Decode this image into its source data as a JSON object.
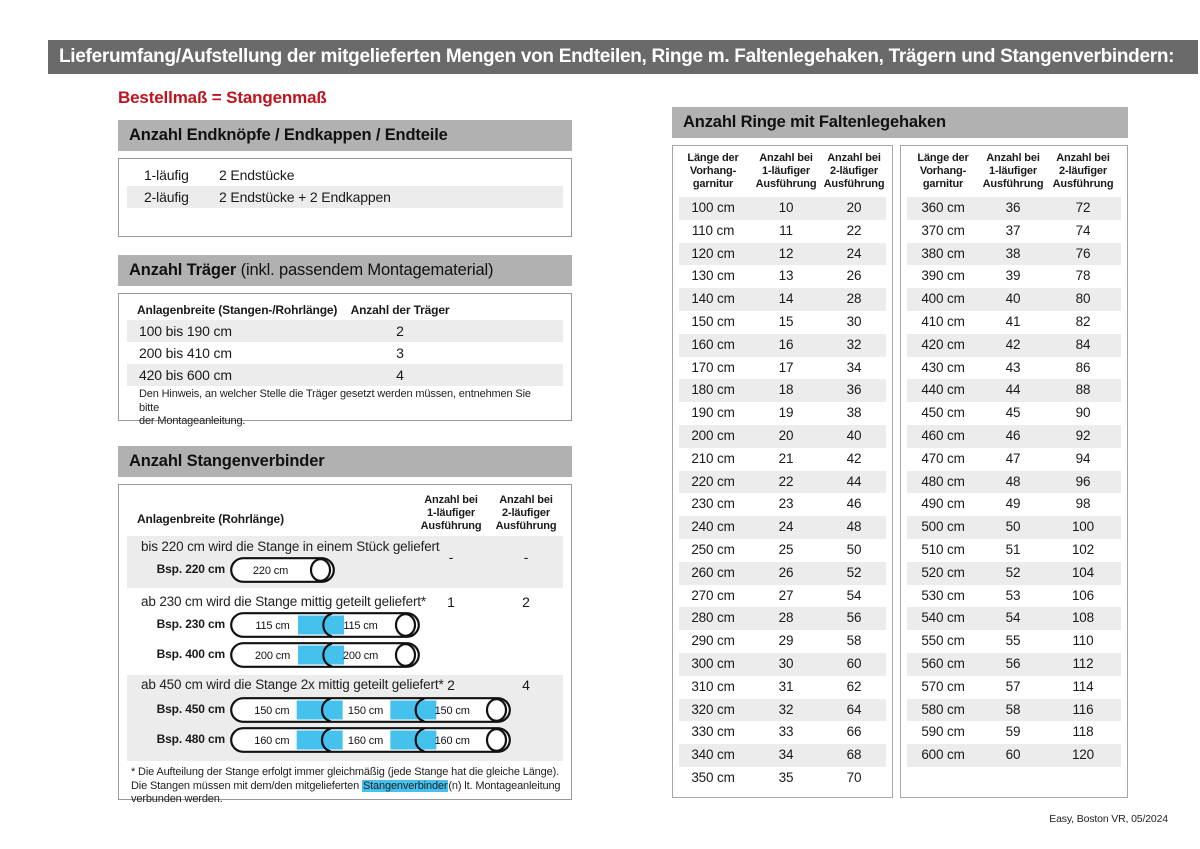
{
  "title_bar": "Lieferumfang/Aufstellung der mitgelieferten Mengen von Endteilen, Ringe m. Faltenlegehaken, Trägern und Stangenverbindern:",
  "red_note": "Bestellmaß = Stangenmaß",
  "colors": {
    "accent_red": "#bf131e",
    "connector_cyan": "#45c1ee",
    "bar_dark": "#6a6a6a",
    "bar_gray": "#b1b1b1",
    "stripe": "#ececec"
  },
  "end_pieces": {
    "header": "Anzahl Endknöpfe / Endkappen / Endteile",
    "rows": [
      {
        "label": "1-läufig",
        "value": "2 Endstücke"
      },
      {
        "label": "2-läufig",
        "value": "2 Endstücke + 2 Endkappen"
      }
    ]
  },
  "traeger": {
    "header_bold": "Anzahl Träger",
    "header_rest": " (inkl. passendem Montagematerial)",
    "col1": "Anlagenbreite (Stangen-/Rohrlänge)",
    "col2": "Anzahl der Träger",
    "rows": [
      {
        "range": "100 bis 190 cm",
        "count": "2"
      },
      {
        "range": "200 bis 410 cm",
        "count": "3"
      },
      {
        "range": "420 bis 600 cm",
        "count": "4"
      }
    ],
    "note": "Den Hinweis, an welcher Stelle die Träger gesetzt werden müssen, entnehmen Sie bitte\nder Montageanleitung."
  },
  "verbinder": {
    "header": "Anzahl Stangenverbinder",
    "col1": "Anlagenbreite (Rohrlänge)",
    "col2": "Anzahl bei\n1-läufiger\nAusführung",
    "col3": "Anzahl bei\n2-läufiger\nAusführung",
    "blocks": [
      {
        "text": "bis 220 cm wird die Stange in einem Stück geliefert",
        "v1": "-",
        "v2": "-",
        "rods": [
          {
            "label": "Bsp. 220 cm",
            "segments": [
              "220 cm"
            ]
          }
        ]
      },
      {
        "text": "ab 230 cm wird die Stange mittig geteilt geliefert*",
        "v1": "1",
        "v2": "2",
        "rods": [
          {
            "label": "Bsp. 230 cm",
            "segments": [
              "115 cm",
              "115 cm"
            ]
          },
          {
            "label": "Bsp. 400 cm",
            "segments": [
              "200 cm",
              "200 cm"
            ]
          }
        ]
      },
      {
        "text": "ab 450 cm wird die Stange 2x mittig geteilt geliefert*",
        "v1": "2",
        "v2": "4",
        "rods": [
          {
            "label": "Bsp. 450 cm",
            "segments": [
              "150 cm",
              "150 cm",
              "150 cm"
            ]
          },
          {
            "label": "Bsp. 480 cm",
            "segments": [
              "160 cm",
              "160 cm",
              "160 cm"
            ]
          }
        ]
      }
    ],
    "footnote_pre": "* Die Aufteilung der Stange erfolgt immer gleichmäßig (jede Stange hat die gleiche Länge). Die Stangen müssen mit dem/den mitgelieferten ",
    "footnote_highlight": "Stangenverbinder",
    "footnote_post": "(n) lt. Montageanleitung verbunden werden."
  },
  "rings": {
    "header": "Anzahl Ringe mit Faltenlegehaken",
    "col1": "Länge der\nVorhang-\ngarnitur",
    "col2": "Anzahl bei\n1-läufiger\nAusführung",
    "col3": "Anzahl bei\n2-läufiger\nAusführung",
    "table1": [
      [
        "100 cm",
        "10",
        "20"
      ],
      [
        "110 cm",
        "11",
        "22"
      ],
      [
        "120 cm",
        "12",
        "24"
      ],
      [
        "130 cm",
        "13",
        "26"
      ],
      [
        "140 cm",
        "14",
        "28"
      ],
      [
        "150 cm",
        "15",
        "30"
      ],
      [
        "160 cm",
        "16",
        "32"
      ],
      [
        "170 cm",
        "17",
        "34"
      ],
      [
        "180 cm",
        "18",
        "36"
      ],
      [
        "190 cm",
        "19",
        "38"
      ],
      [
        "200 cm",
        "20",
        "40"
      ],
      [
        "210 cm",
        "21",
        "42"
      ],
      [
        "220 cm",
        "22",
        "44"
      ],
      [
        "230 cm",
        "23",
        "46"
      ],
      [
        "240 cm",
        "24",
        "48"
      ],
      [
        "250 cm",
        "25",
        "50"
      ],
      [
        "260 cm",
        "26",
        "52"
      ],
      [
        "270 cm",
        "27",
        "54"
      ],
      [
        "280 cm",
        "28",
        "56"
      ],
      [
        "290 cm",
        "29",
        "58"
      ],
      [
        "300 cm",
        "30",
        "60"
      ],
      [
        "310 cm",
        "31",
        "62"
      ],
      [
        "320 cm",
        "32",
        "64"
      ],
      [
        "330 cm",
        "33",
        "66"
      ],
      [
        "340 cm",
        "34",
        "68"
      ],
      [
        "350 cm",
        "35",
        "70"
      ]
    ],
    "table2": [
      [
        "360 cm",
        "36",
        "72"
      ],
      [
        "370 cm",
        "37",
        "74"
      ],
      [
        "380 cm",
        "38",
        "76"
      ],
      [
        "390 cm",
        "39",
        "78"
      ],
      [
        "400 cm",
        "40",
        "80"
      ],
      [
        "410 cm",
        "41",
        "82"
      ],
      [
        "420 cm",
        "42",
        "84"
      ],
      [
        "430 cm",
        "43",
        "86"
      ],
      [
        "440 cm",
        "44",
        "88"
      ],
      [
        "450 cm",
        "45",
        "90"
      ],
      [
        "460 cm",
        "46",
        "92"
      ],
      [
        "470 cm",
        "47",
        "94"
      ],
      [
        "480 cm",
        "48",
        "96"
      ],
      [
        "490 cm",
        "49",
        "98"
      ],
      [
        "500 cm",
        "50",
        "100"
      ],
      [
        "510 cm",
        "51",
        "102"
      ],
      [
        "520 cm",
        "52",
        "104"
      ],
      [
        "530 cm",
        "53",
        "106"
      ],
      [
        "540 cm",
        "54",
        "108"
      ],
      [
        "550 cm",
        "55",
        "110"
      ],
      [
        "560 cm",
        "56",
        "112"
      ],
      [
        "570 cm",
        "57",
        "114"
      ],
      [
        "580 cm",
        "58",
        "116"
      ],
      [
        "590 cm",
        "59",
        "118"
      ],
      [
        "600 cm",
        "60",
        "120"
      ]
    ]
  },
  "footer": "Easy, Boston VR, 05/2024"
}
